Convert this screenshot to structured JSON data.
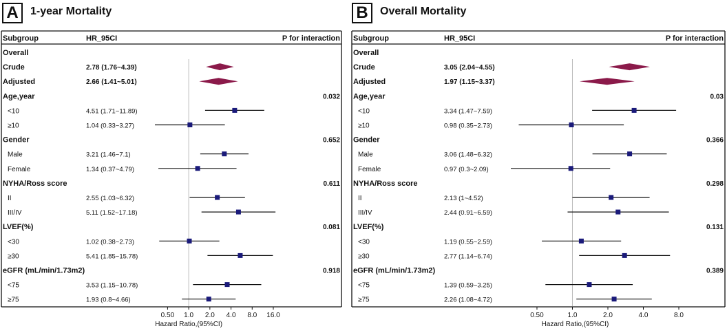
{
  "chart_data": [
    {
      "type": "forest",
      "panel_letter": "A",
      "title": "1-year Mortality",
      "headers": {
        "subgroup": "Subgroup",
        "hr": "HR_95CI",
        "p": "P for interaction"
      },
      "xlabel": "Hazard Ratio,(95%CI)",
      "x_scale": "log2",
      "xlim": [
        0.33,
        16.0
      ],
      "ticks": [
        0.5,
        1.0,
        2.0,
        4.0,
        8.0,
        16.0
      ],
      "tick_labels": [
        "0.50",
        "1.0",
        "2.0",
        "4.0",
        "8.0",
        "16.0"
      ],
      "reference_line": 1.0,
      "rows": [
        {
          "label": "Overall",
          "type": "group"
        },
        {
          "label": "Crude",
          "type": "summary",
          "hr": 2.78,
          "lo": 1.76,
          "hi": 4.39,
          "text": "2.78 (1.76~4.39)"
        },
        {
          "label": "Adjusted",
          "type": "summary",
          "hr": 2.66,
          "lo": 1.41,
          "hi": 5.01,
          "text": "2.66 (1.41~5.01)"
        },
        {
          "label": "Age,year",
          "type": "group",
          "p": "0.032"
        },
        {
          "label": "<10",
          "type": "sub",
          "hr": 4.51,
          "lo": 1.71,
          "hi": 11.89,
          "text": "4.51 (1.71~11.89)"
        },
        {
          "label": "≥10",
          "type": "sub",
          "hr": 1.04,
          "lo": 0.33,
          "hi": 3.27,
          "text": "1.04 (0.33~3.27)"
        },
        {
          "label": "Gender",
          "type": "group",
          "p": "0.652"
        },
        {
          "label": "Male",
          "type": "sub",
          "hr": 3.21,
          "lo": 1.46,
          "hi": 7.1,
          "text": "3.21 (1.46~7.1)"
        },
        {
          "label": "Female",
          "type": "sub",
          "hr": 1.34,
          "lo": 0.37,
          "hi": 4.79,
          "text": "1.34 (0.37~4.79)"
        },
        {
          "label": "NYHA/Ross score",
          "type": "group",
          "p": "0.611"
        },
        {
          "label": "II",
          "type": "sub",
          "hr": 2.55,
          "lo": 1.03,
          "hi": 6.32,
          "text": "2.55 (1.03~6.32)"
        },
        {
          "label": "III/IV",
          "type": "sub",
          "hr": 5.11,
          "lo": 1.52,
          "hi": 17.18,
          "text": "5.11 (1.52~17.18)"
        },
        {
          "label": "LVEF(%)",
          "type": "group",
          "p": "0.081"
        },
        {
          "label": "<30",
          "type": "sub",
          "hr": 1.02,
          "lo": 0.38,
          "hi": 2.73,
          "text": "1.02 (0.38~2.73)"
        },
        {
          "label": "≥30",
          "type": "sub",
          "hr": 5.41,
          "lo": 1.85,
          "hi": 15.78,
          "text": "5.41 (1.85~15.78)"
        },
        {
          "label": "eGFR (mL/min/1.73m2)",
          "type": "group",
          "p": "0.918"
        },
        {
          "label": "<75",
          "type": "sub",
          "hr": 3.53,
          "lo": 1.15,
          "hi": 10.78,
          "text": "3.53 (1.15~10.78)"
        },
        {
          "label": "≥75",
          "type": "sub",
          "hr": 1.93,
          "lo": 0.8,
          "hi": 4.66,
          "text": "1.93 (0.8~4.66)"
        }
      ]
    },
    {
      "type": "forest",
      "panel_letter": "B",
      "title": "Overall Mortality",
      "headers": {
        "subgroup": "Subgroup",
        "hr": "HR_95CI",
        "p": "P for interaction"
      },
      "xlabel": "Hazard Ratio,(95%CI)",
      "x_scale": "log2",
      "xlim": [
        0.3,
        8.0
      ],
      "ticks": [
        0.5,
        1.0,
        2.0,
        4.0,
        8.0
      ],
      "tick_labels": [
        "0.50",
        "1.0",
        "2.0",
        "4.0",
        "8.0"
      ],
      "reference_line": 1.0,
      "rows": [
        {
          "label": "Overall",
          "type": "group"
        },
        {
          "label": "Crude",
          "type": "summary",
          "hr": 3.05,
          "lo": 2.04,
          "hi": 4.55,
          "text": "3.05 (2.04~4.55)"
        },
        {
          "label": "Adjusted",
          "type": "summary",
          "hr": 1.97,
          "lo": 1.15,
          "hi": 3.37,
          "text": "1.97 (1.15~3.37)"
        },
        {
          "label": "Age,year",
          "type": "group",
          "p": "0.03"
        },
        {
          "label": "<10",
          "type": "sub",
          "hr": 3.34,
          "lo": 1.47,
          "hi": 7.59,
          "text": "3.34 (1.47~7.59)"
        },
        {
          "label": "≥10",
          "type": "sub",
          "hr": 0.98,
          "lo": 0.35,
          "hi": 2.73,
          "text": "0.98 (0.35~2.73)"
        },
        {
          "label": "Gender",
          "type": "group",
          "p": "0.366"
        },
        {
          "label": "Male",
          "type": "sub",
          "hr": 3.06,
          "lo": 1.48,
          "hi": 6.32,
          "text": "3.06 (1.48~6.32)"
        },
        {
          "label": "Female",
          "type": "sub",
          "hr": 0.97,
          "lo": 0.3,
          "hi": 2.09,
          "text": "0.97 (0.3~2.09)"
        },
        {
          "label": "NYHA/Ross score",
          "type": "group",
          "p": "0.298"
        },
        {
          "label": "II",
          "type": "sub",
          "hr": 2.13,
          "lo": 1.0,
          "hi": 4.52,
          "text": "2.13 (1~4.52)"
        },
        {
          "label": "III/IV",
          "type": "sub",
          "hr": 2.44,
          "lo": 0.91,
          "hi": 6.59,
          "text": "2.44 (0.91~6.59)"
        },
        {
          "label": "LVEF(%)",
          "type": "group",
          "p": "0.131"
        },
        {
          "label": "<30",
          "type": "sub",
          "hr": 1.19,
          "lo": 0.55,
          "hi": 2.59,
          "text": "1.19 (0.55~2.59)"
        },
        {
          "label": "≥30",
          "type": "sub",
          "hr": 2.77,
          "lo": 1.14,
          "hi": 6.74,
          "text": "2.77 (1.14~6.74)"
        },
        {
          "label": "eGFR (mL/min/1.73m2)",
          "type": "group",
          "p": "0.389"
        },
        {
          "label": "<75",
          "type": "sub",
          "hr": 1.39,
          "lo": 0.59,
          "hi": 3.25,
          "text": "1.39 (0.59~3.25)"
        },
        {
          "label": "≥75",
          "type": "sub",
          "hr": 2.26,
          "lo": 1.08,
          "hi": 4.72,
          "text": "2.26 (1.08~4.72)"
        }
      ]
    }
  ],
  "colors": {
    "marker": "#1a1a7a",
    "diamond": "#8b1a4a",
    "text": "#111111",
    "ref_line": "#bbbbbb",
    "border": "#111111"
  }
}
